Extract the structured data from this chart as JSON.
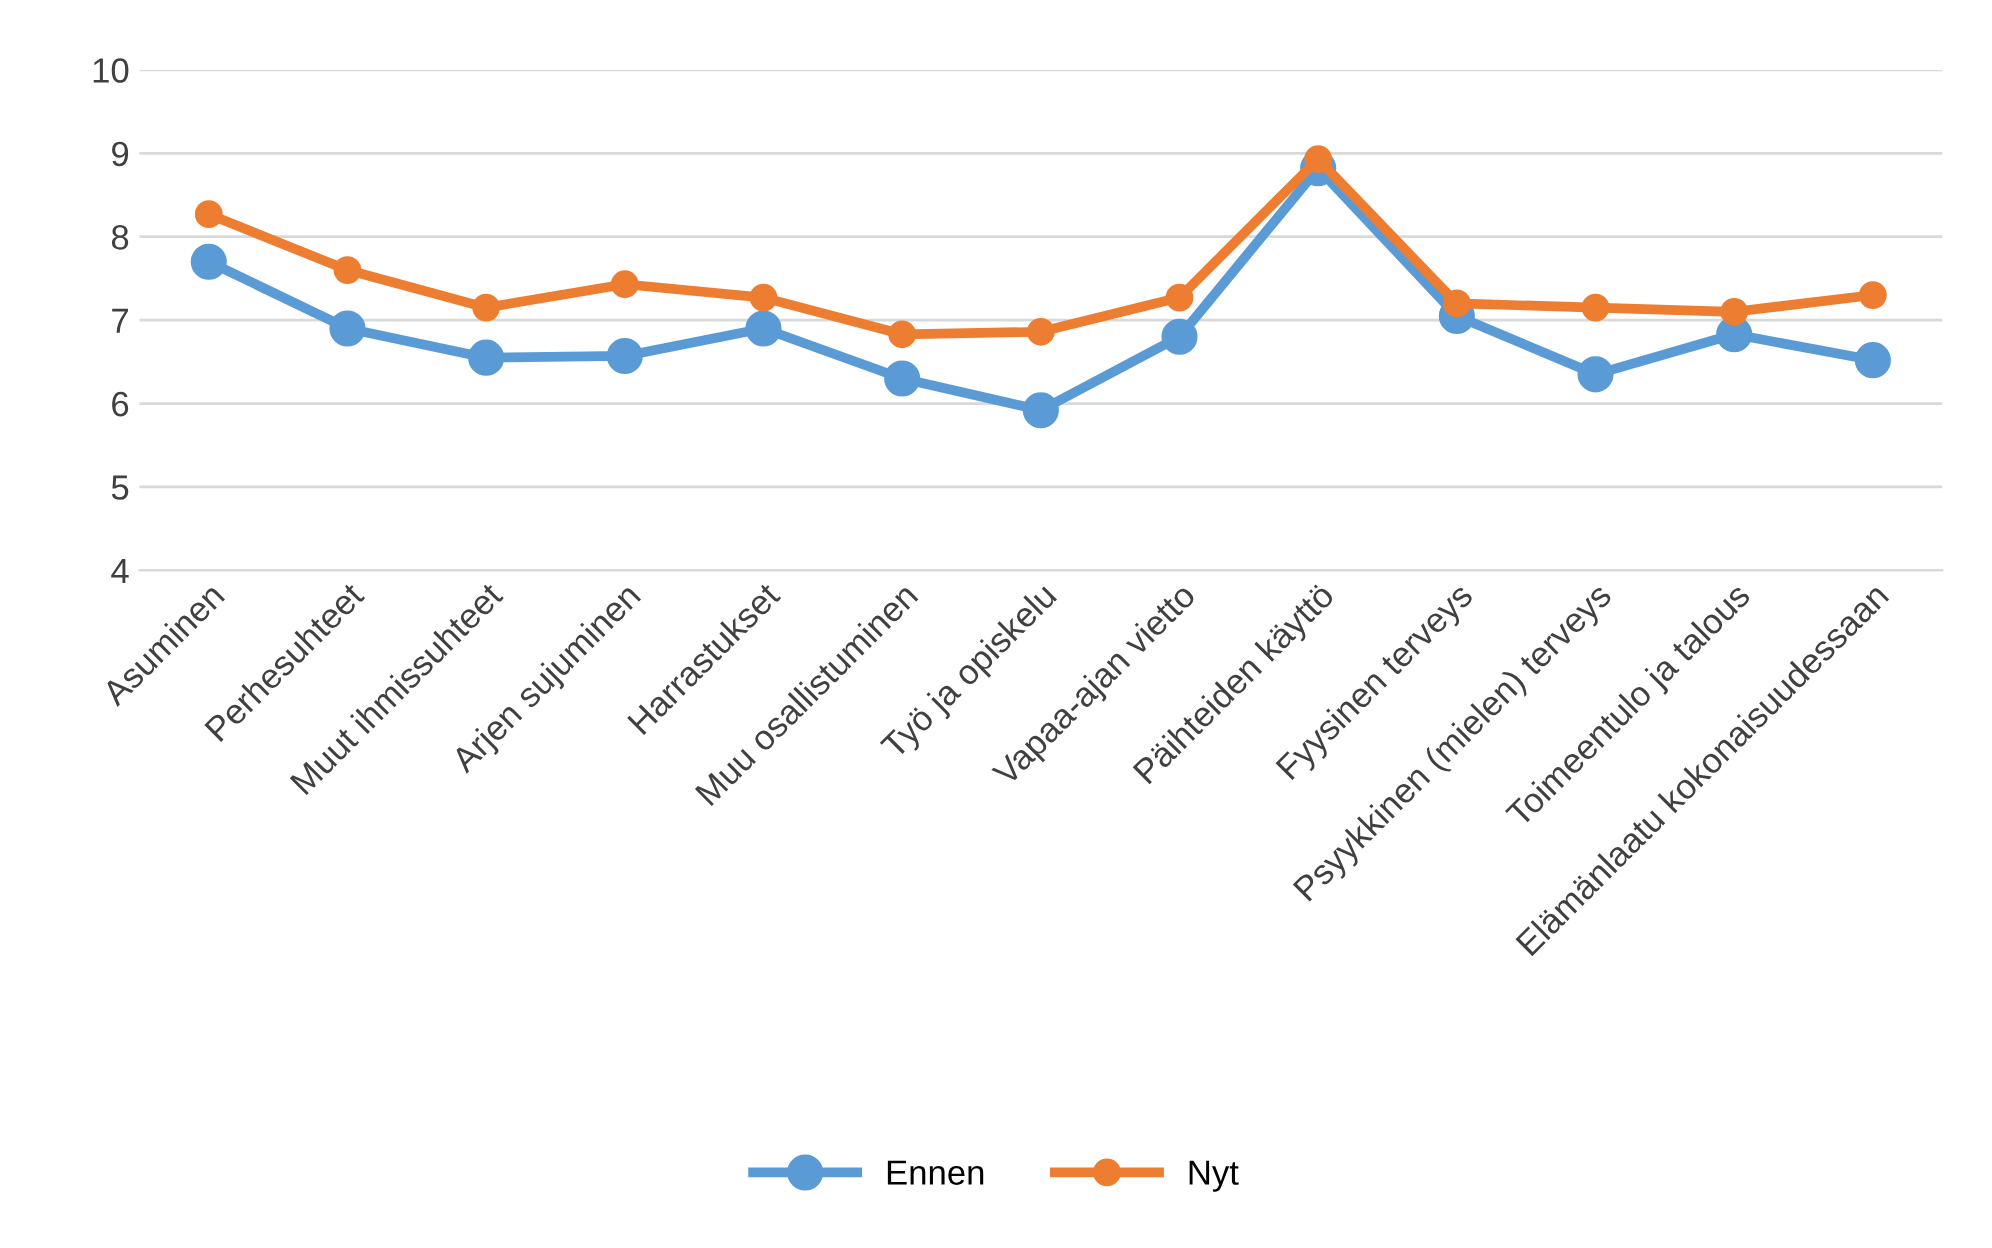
{
  "chart_data": {
    "type": "line",
    "categories": [
      "Asuminen",
      "Perhesuhteet",
      "Muut ihmissuhteet",
      "Arjen sujuminen",
      "Harrastukset",
      "Muu osallistuminen",
      "Työ ja opiskelu",
      "Vapaa-ajan vietto",
      "Päihteiden käyttö",
      "Fyysinen terveys",
      "Psyykkinen (mielen) terveys",
      "Toimeentulo ja talous",
      "Elämänlaatu kokonaisuudessaan"
    ],
    "series": [
      {
        "name": "Ennen",
        "color": "#5b9bd5",
        "values": [
          7.7,
          6.9,
          6.55,
          6.57,
          6.9,
          6.3,
          5.92,
          6.8,
          8.82,
          7.05,
          6.35,
          6.83,
          6.52
        ]
      },
      {
        "name": "Nyt",
        "color": "#ed7d31",
        "values": [
          8.27,
          7.6,
          7.15,
          7.43,
          7.27,
          6.83,
          6.86,
          7.27,
          8.93,
          7.2,
          7.15,
          7.1,
          7.3
        ]
      }
    ],
    "ylim": [
      4,
      10
    ],
    "yticks": [
      4,
      5,
      6,
      7,
      8,
      9,
      10
    ],
    "grid": "y",
    "legend": "bottom",
    "marker": "circle",
    "line_style": "solid"
  }
}
